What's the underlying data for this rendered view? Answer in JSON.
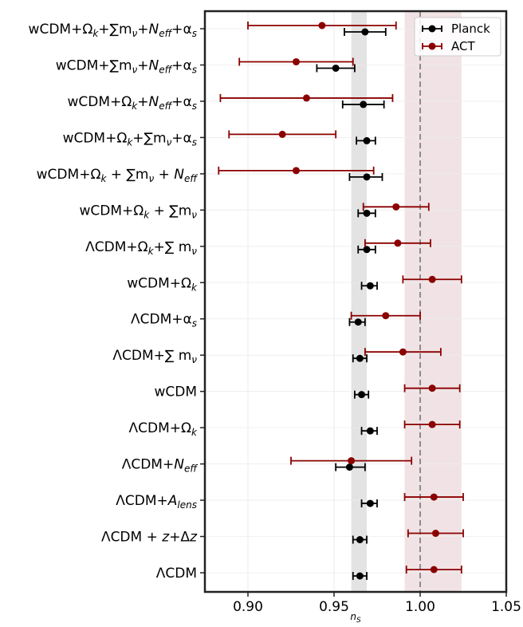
{
  "chart_data": {
    "type": "scatter",
    "title": "",
    "xlabel": "n_S",
    "ylabel": "",
    "xlim": [
      0.875,
      1.05
    ],
    "xticks": [
      "0.90",
      "0.95",
      "1.00",
      "1.05"
    ],
    "xtick_values": [
      0.9,
      0.95,
      1.0,
      1.05
    ],
    "grid": true,
    "legend_placement": "top-right",
    "reference_line": 1.0,
    "bands": [
      {
        "series": "Planck",
        "lo": 0.96,
        "hi": 0.969,
        "color": "#d9d9d9"
      },
      {
        "series": "ACT",
        "lo": 0.991,
        "hi": 1.024,
        "color": "#ecd9dc"
      }
    ],
    "categories": [
      [
        "wCDM+",
        "Ωk",
        "+∑mν+",
        "Neff",
        "+",
        "αs"
      ],
      [
        "wCDM+∑mν+",
        "Neff",
        "+",
        "αs"
      ],
      [
        "wCDM+",
        "Ωk",
        "+",
        "Neff",
        "+",
        "αs"
      ],
      [
        "wCDM+",
        "Ωk",
        "+∑mν+",
        "αs"
      ],
      [
        "wCDM+",
        "Ωk",
        " + ∑mν + ",
        "Neff"
      ],
      [
        "wCDM+",
        "Ωk",
        " + ∑mν"
      ],
      [
        "ΛCDM+",
        "Ωk",
        "+∑ mν"
      ],
      [
        "wCDM+",
        "Ωk"
      ],
      [
        "ΛCDM+",
        "αs"
      ],
      [
        "ΛCDM+∑ mν"
      ],
      [
        "wCDM"
      ],
      [
        "ΛCDM+",
        "Ωk"
      ],
      [
        "ΛCDM+",
        "Neff"
      ],
      [
        "ΛCDM+",
        "Alens"
      ],
      [
        "ΛCDM + ",
        "z",
        "+Δ",
        "z"
      ],
      [
        "ΛCDM"
      ]
    ],
    "series": [
      {
        "name": "Planck",
        "color": "#000000",
        "values": [
          0.968,
          0.951,
          0.967,
          0.969,
          0.969,
          0.969,
          0.969,
          0.971,
          0.964,
          0.965,
          0.966,
          0.971,
          0.959,
          0.971,
          0.965,
          0.965
        ],
        "lo": [
          0.956,
          0.94,
          0.955,
          0.963,
          0.959,
          0.964,
          0.964,
          0.966,
          0.959,
          0.961,
          0.962,
          0.966,
          0.951,
          0.966,
          0.961,
          0.961
        ],
        "hi": [
          0.98,
          0.962,
          0.979,
          0.974,
          0.978,
          0.974,
          0.974,
          0.975,
          0.968,
          0.969,
          0.97,
          0.975,
          0.968,
          0.975,
          0.969,
          0.969
        ]
      },
      {
        "name": "ACT",
        "color": "#8b0000",
        "values": [
          0.943,
          0.928,
          0.934,
          0.92,
          0.928,
          0.986,
          0.987,
          1.007,
          0.98,
          0.99,
          1.007,
          1.007,
          0.96,
          1.008,
          1.009,
          1.008
        ],
        "lo": [
          0.9,
          0.895,
          0.884,
          0.889,
          0.883,
          0.967,
          0.968,
          0.99,
          0.96,
          0.968,
          0.991,
          0.991,
          0.925,
          0.991,
          0.993,
          0.992
        ],
        "hi": [
          0.986,
          0.961,
          0.984,
          0.951,
          0.973,
          1.005,
          1.006,
          1.024,
          1.0,
          1.012,
          1.023,
          1.023,
          0.995,
          1.025,
          1.025,
          1.024
        ]
      }
    ]
  }
}
